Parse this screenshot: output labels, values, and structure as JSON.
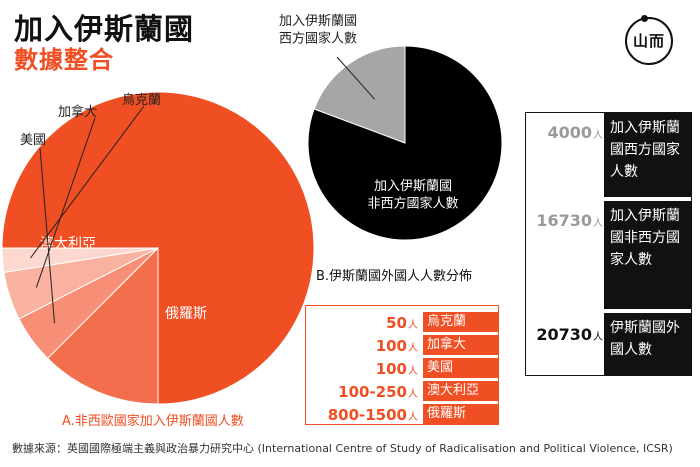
{
  "header": {
    "title": "加入伊斯蘭國",
    "subtitle": "數據整合",
    "logo_text": "山而",
    "logo_icon": "sun-icon"
  },
  "colors": {
    "accent": "#f04e23",
    "russia": "#f04e23",
    "australia": "#f26e4c",
    "usa": "#f68f75",
    "canada": "#f9b29f",
    "uzbekistan": "#fcd8cf",
    "western": "#a6a6a6",
    "non_western": "#000000"
  },
  "chart_data": [
    {
      "type": "pie",
      "caption": "A.非西歐國家加入伊斯蘭國人數",
      "categories": [
        "俄羅斯",
        "澳大利亞",
        "美國",
        "加拿大",
        "烏克蘭"
      ],
      "values": [
        1500,
        250,
        100,
        100,
        50
      ],
      "legend": {
        "unit": "人",
        "rows": [
          {
            "value": "50",
            "name": "烏克蘭"
          },
          {
            "value": "100",
            "name": "加拿大"
          },
          {
            "value": "100",
            "name": "美國"
          },
          {
            "value": "100-250",
            "name": "澳大利亞"
          },
          {
            "value": "800-1500",
            "name": "俄羅斯"
          }
        ]
      }
    },
    {
      "type": "pie",
      "caption": "B.伊斯蘭國外國人人數分佈",
      "categories": [
        "加入伊斯蘭國西方國家人數",
        "加入伊斯蘭國非西方國家人數"
      ],
      "slice_labels": [
        "加入伊斯蘭國\n西方國家人數",
        "加入伊斯蘭國\n非西方國家人數"
      ],
      "values": [
        4000,
        16730
      ],
      "total": 20730,
      "legend": {
        "unit": "人",
        "rows": [
          {
            "value": "4000",
            "name": "加入伊斯蘭國西方國家人數"
          },
          {
            "value": "16730",
            "name": "加入伊斯蘭國非西方國家人數"
          },
          {
            "value": "20730",
            "name": "伊斯蘭國外國人數"
          }
        ]
      }
    }
  ],
  "source": "數據來源：英國國際極端主義與政治暴力研究中心 (International Centre of Study of Radicalisation and Political Violence, ICSR)"
}
